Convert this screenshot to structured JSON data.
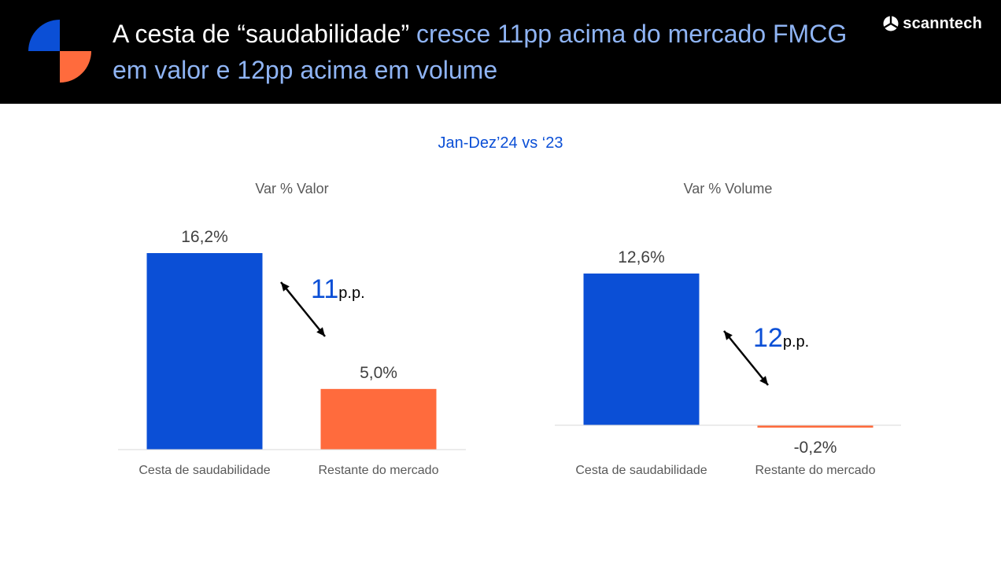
{
  "header": {
    "title_white": "A cesta de “saudabilidade”",
    "title_blue": "cresce 11pp acima do mercado FMCG em valor e 12pp acima em volume",
    "brand": "scanntech",
    "colors": {
      "background": "#000000",
      "accent_blue": "#8fb4f4"
    }
  },
  "subtitle": "Jan-Dez’24 vs ‘23",
  "chart_data": [
    {
      "type": "bar",
      "title": "Var % Valor",
      "categories": [
        "Cesta de saudabilidade",
        "Restante do mercado"
      ],
      "values": [
        16.2,
        5.0
      ],
      "value_labels": [
        "16,2%",
        "5,0%"
      ],
      "colors": [
        "#0b4fd6",
        "#ff6b3d"
      ],
      "ylim": [
        0,
        18
      ],
      "grid": false,
      "annotation": {
        "value": "11",
        "unit": "p.p."
      }
    },
    {
      "type": "bar",
      "title": "Var % Volume",
      "categories": [
        "Cesta de saudabilidade",
        "Restante do mercado"
      ],
      "values": [
        12.6,
        -0.2
      ],
      "value_labels": [
        "12,6%",
        "-0,2%"
      ],
      "colors": [
        "#0b4fd6",
        "#ff6b3d"
      ],
      "ylim": [
        -2,
        14
      ],
      "grid": false,
      "annotation": {
        "value": "12",
        "unit": "p.p."
      }
    }
  ]
}
